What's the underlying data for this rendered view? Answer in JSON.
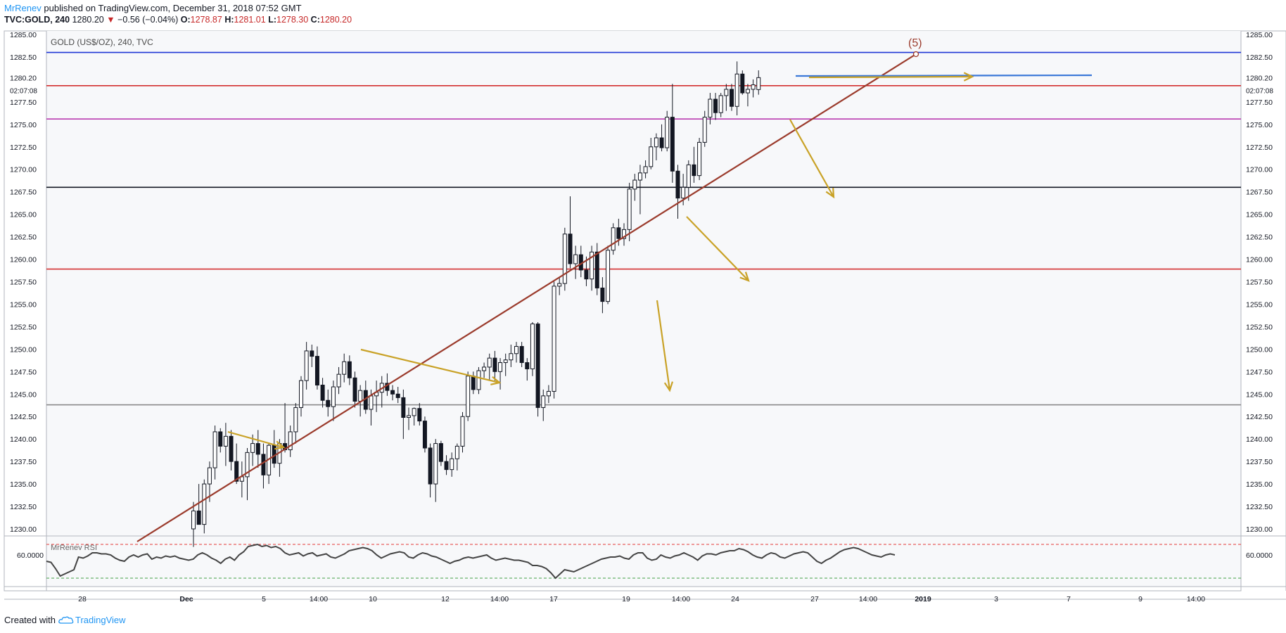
{
  "header": {
    "author": "MrRenev",
    "published": "published on TradingView.com, December 31, 2018 07:52 GMT",
    "symbol": "TVC:GOLD, 240",
    "last": "1280.20",
    "change_arrow": "▼",
    "change": "−0.56 (−0.04%)",
    "o_label": "O:",
    "o": "1278.87",
    "h_label": "H:",
    "h": "1281.01",
    "l_label": "L:",
    "l": "1278.30",
    "c_label": "C:",
    "c": "1280.20"
  },
  "footer": {
    "created_with": "Created with",
    "brand": "TradingView"
  },
  "chart_data": {
    "type": "candlestick",
    "title": "GOLD (US$/OZ), 240, TVC",
    "price_axis": {
      "ylim": [
        1228.5,
        1286.0
      ],
      "ticks": [
        "1285.00",
        "1282.50",
        "1280.20",
        "1277.50",
        "1275.00",
        "1272.50",
        "1270.00",
        "1267.50",
        "1265.00",
        "1262.50",
        "1260.00",
        "1257.50",
        "1255.00",
        "1252.50",
        "1250.00",
        "1247.50",
        "1245.00",
        "1242.50",
        "1240.00",
        "1237.50",
        "1235.00",
        "1232.50",
        "1230.00"
      ],
      "last_price": "1280.20",
      "countdown": "02:07:08"
    },
    "time_axis": {
      "ticks": [
        "28",
        "Dec",
        "5",
        "14:00",
        "10",
        "12",
        "14:00",
        "17",
        "19",
        "14:00",
        "24",
        "27",
        "14:00",
        "2019",
        "3",
        "7",
        "9",
        "14:00"
      ]
    },
    "horizontal_levels": [
      {
        "price": 1283.0,
        "color": "#1e36d6"
      },
      {
        "price": 1279.3,
        "color": "#d32f2f"
      },
      {
        "price": 1275.6,
        "color": "#ba3bb0"
      },
      {
        "price": 1268.0,
        "color": "#131722"
      },
      {
        "price": 1258.9,
        "color": "#d32f2f"
      },
      {
        "price": 1243.8,
        "color": "#8a8a8a"
      }
    ],
    "trendline": {
      "color": "#9b3b2c",
      "label": "(5)"
    },
    "arrows_color": "#c9a227",
    "candles": [
      [
        1230.0,
        1233.0,
        1228.0,
        1232.0
      ],
      [
        1232.0,
        1235.0,
        1230.5,
        1230.5
      ],
      [
        1230.5,
        1235.5,
        1229.5,
        1235.0
      ],
      [
        1235.0,
        1237.5,
        1233.0,
        1236.8
      ],
      [
        1236.8,
        1241.5,
        1235.5,
        1240.8
      ],
      [
        1240.8,
        1241.2,
        1238.5,
        1239.2
      ],
      [
        1239.2,
        1241.8,
        1237.0,
        1240.3
      ],
      [
        1240.3,
        1241.0,
        1236.5,
        1237.5
      ],
      [
        1237.5,
        1239.5,
        1235.0,
        1235.3
      ],
      [
        1235.3,
        1237.5,
        1233.5,
        1235.8
      ],
      [
        1235.8,
        1239.0,
        1233.2,
        1238.5
      ],
      [
        1238.5,
        1240.5,
        1237.0,
        1239.5
      ],
      [
        1239.5,
        1241.0,
        1236.8,
        1238.3
      ],
      [
        1238.3,
        1239.5,
        1234.5,
        1236.0
      ],
      [
        1236.0,
        1239.5,
        1235.0,
        1239.3
      ],
      [
        1239.3,
        1241.0,
        1236.8,
        1237.3
      ],
      [
        1237.3,
        1240.0,
        1235.8,
        1239.5
      ],
      [
        1239.5,
        1244.0,
        1238.5,
        1238.8
      ],
      [
        1238.8,
        1241.5,
        1238.0,
        1240.8
      ],
      [
        1240.8,
        1244.0,
        1239.5,
        1243.5
      ],
      [
        1243.5,
        1247.0,
        1242.5,
        1246.5
      ],
      [
        1246.5,
        1250.8,
        1245.5,
        1249.8
      ],
      [
        1249.8,
        1250.5,
        1248.0,
        1249.2
      ],
      [
        1249.2,
        1250.3,
        1245.5,
        1246.0
      ],
      [
        1246.0,
        1246.8,
        1243.5,
        1244.3
      ],
      [
        1244.3,
        1245.5,
        1242.5,
        1243.6
      ],
      [
        1243.6,
        1246.5,
        1242.0,
        1245.8
      ],
      [
        1245.8,
        1248.0,
        1245.0,
        1247.2
      ],
      [
        1247.2,
        1249.5,
        1246.3,
        1248.6
      ],
      [
        1248.6,
        1249.3,
        1246.0,
        1246.8
      ],
      [
        1246.8,
        1247.5,
        1243.5,
        1244.2
      ],
      [
        1244.2,
        1246.0,
        1242.5,
        1245.4
      ],
      [
        1245.4,
        1246.5,
        1242.8,
        1243.3
      ],
      [
        1243.3,
        1245.5,
        1241.5,
        1244.8
      ],
      [
        1244.8,
        1246.5,
        1243.0,
        1245.2
      ],
      [
        1245.2,
        1247.0,
        1243.5,
        1246.2
      ],
      [
        1246.2,
        1247.3,
        1244.8,
        1245.4
      ],
      [
        1245.4,
        1246.0,
        1244.3,
        1245.0
      ],
      [
        1245.0,
        1245.8,
        1244.0,
        1244.6
      ],
      [
        1244.6,
        1245.5,
        1240.0,
        1242.4
      ],
      [
        1242.4,
        1243.5,
        1241.0,
        1242.6
      ],
      [
        1242.6,
        1243.5,
        1241.5,
        1243.4
      ],
      [
        1243.4,
        1244.0,
        1241.5,
        1242.0
      ],
      [
        1242.0,
        1242.5,
        1238.5,
        1239.0
      ],
      [
        1239.0,
        1239.5,
        1233.5,
        1235.0
      ],
      [
        1235.0,
        1240.0,
        1233.0,
        1239.5
      ],
      [
        1239.5,
        1239.8,
        1237.0,
        1237.5
      ],
      [
        1237.5,
        1238.2,
        1236.0,
        1236.6
      ],
      [
        1236.6,
        1238.5,
        1235.8,
        1237.8
      ],
      [
        1237.8,
        1239.5,
        1236.5,
        1239.2
      ],
      [
        1239.2,
        1243.0,
        1238.5,
        1242.5
      ],
      [
        1242.5,
        1247.5,
        1242.0,
        1247.0
      ],
      [
        1247.0,
        1247.5,
        1245.0,
        1245.5
      ],
      [
        1245.5,
        1248.0,
        1245.0,
        1247.6
      ],
      [
        1247.6,
        1248.5,
        1246.8,
        1248.0
      ],
      [
        1248.0,
        1249.5,
        1246.5,
        1249.0
      ],
      [
        1249.0,
        1249.8,
        1246.5,
        1247.5
      ],
      [
        1247.5,
        1249.0,
        1245.5,
        1248.5
      ],
      [
        1248.5,
        1249.5,
        1247.0,
        1248.8
      ],
      [
        1248.8,
        1250.5,
        1248.0,
        1249.5
      ],
      [
        1249.5,
        1250.8,
        1248.5,
        1250.3
      ],
      [
        1250.3,
        1250.8,
        1248.0,
        1248.5
      ],
      [
        1248.5,
        1249.0,
        1246.5,
        1247.8
      ],
      [
        1247.8,
        1253.0,
        1247.0,
        1252.8
      ],
      [
        1252.8,
        1253.0,
        1242.5,
        1243.5
      ],
      [
        1243.5,
        1245.5,
        1242.0,
        1244.8
      ],
      [
        1244.8,
        1246.0,
        1244.0,
        1245.3
      ],
      [
        1245.3,
        1257.5,
        1244.5,
        1257.0
      ],
      [
        1257.0,
        1258.0,
        1256.0,
        1257.3
      ],
      [
        1257.3,
        1263.5,
        1256.5,
        1262.8
      ],
      [
        1262.8,
        1267.0,
        1259.0,
        1259.5
      ],
      [
        1259.5,
        1261.5,
        1257.8,
        1260.5
      ],
      [
        1260.5,
        1261.5,
        1258.0,
        1258.8
      ],
      [
        1258.8,
        1260.3,
        1257.0,
        1257.8
      ],
      [
        1257.8,
        1261.5,
        1256.5,
        1260.8
      ],
      [
        1260.8,
        1261.8,
        1256.0,
        1256.8
      ],
      [
        1256.8,
        1258.0,
        1254.0,
        1255.3
      ],
      [
        1255.3,
        1261.5,
        1255.0,
        1261.0
      ],
      [
        1261.0,
        1264.0,
        1260.5,
        1263.5
      ],
      [
        1263.5,
        1264.5,
        1261.5,
        1262.3
      ],
      [
        1262.3,
        1264.0,
        1261.5,
        1263.3
      ],
      [
        1263.3,
        1268.5,
        1262.0,
        1267.8
      ],
      [
        1267.8,
        1269.5,
        1266.5,
        1268.8
      ],
      [
        1268.8,
        1270.5,
        1265.0,
        1269.6
      ],
      [
        1269.6,
        1271.0,
        1269.0,
        1270.3
      ],
      [
        1270.3,
        1273.5,
        1270.0,
        1272.5
      ],
      [
        1272.5,
        1274.0,
        1271.0,
        1273.5
      ],
      [
        1273.5,
        1275.0,
        1272.0,
        1272.4
      ],
      [
        1272.4,
        1276.5,
        1272.0,
        1275.8
      ],
      [
        1275.8,
        1279.5,
        1268.5,
        1269.8
      ],
      [
        1269.8,
        1270.5,
        1264.5,
        1266.8
      ],
      [
        1266.8,
        1269.5,
        1266.0,
        1268.0
      ],
      [
        1268.0,
        1271.0,
        1266.5,
        1270.5
      ],
      [
        1270.5,
        1272.5,
        1268.5,
        1269.3
      ],
      [
        1269.3,
        1273.5,
        1268.8,
        1273.0
      ],
      [
        1273.0,
        1276.5,
        1272.5,
        1275.8
      ],
      [
        1275.8,
        1278.5,
        1275.0,
        1277.8
      ],
      [
        1277.8,
        1278.5,
        1275.5,
        1276.3
      ],
      [
        1276.3,
        1278.5,
        1275.8,
        1278.2
      ],
      [
        1278.2,
        1279.5,
        1276.5,
        1278.9
      ],
      [
        1278.9,
        1279.5,
        1276.5,
        1277.0
      ],
      [
        1277.0,
        1282.0,
        1276.0,
        1280.6
      ],
      [
        1280.6,
        1281.0,
        1278.3,
        1278.5
      ],
      [
        1278.5,
        1279.5,
        1277.0,
        1278.9
      ],
      [
        1278.9,
        1280.0,
        1278.0,
        1279.4
      ],
      [
        1278.87,
        1281.01,
        1278.3,
        1280.2
      ]
    ],
    "indicator": {
      "name": "MrRenev RSI",
      "ytick": "60.0000",
      "values": [
        54,
        53,
        47,
        40,
        42,
        44,
        46,
        58,
        57,
        59,
        62,
        62,
        61,
        61,
        60,
        57,
        55,
        54,
        58,
        60,
        58,
        60,
        61,
        56,
        58,
        57,
        59,
        58,
        59,
        57,
        56,
        55,
        56,
        60,
        62,
        60,
        57,
        55,
        52,
        56,
        58,
        55,
        60,
        63,
        68,
        69,
        70,
        68,
        69,
        67,
        68,
        66,
        62,
        60,
        61,
        62,
        59,
        61,
        62,
        59,
        60,
        61,
        58,
        57,
        59,
        61,
        64,
        65,
        66,
        67,
        66,
        64,
        60,
        57,
        59,
        61,
        62,
        63,
        62,
        58,
        57,
        60,
        62,
        61,
        59,
        58,
        56,
        54,
        52,
        54,
        55,
        57,
        58,
        57,
        58,
        59,
        60,
        57,
        55,
        56,
        57,
        56,
        55,
        55,
        54,
        53,
        50,
        50,
        49,
        47,
        43,
        38,
        42,
        46,
        45,
        44,
        46,
        48,
        50,
        52,
        54,
        56,
        57,
        58,
        58,
        59,
        57,
        56,
        60,
        62,
        62,
        57,
        55,
        56,
        60,
        58,
        57,
        59,
        60,
        62,
        60,
        58,
        55,
        59,
        61,
        61,
        60,
        62,
        63,
        64,
        64,
        66,
        65,
        63,
        60,
        58,
        57,
        60,
        62,
        61,
        58,
        57,
        59,
        61,
        62,
        63,
        62,
        58,
        54,
        52,
        55,
        57,
        60,
        63,
        65,
        66,
        67,
        66,
        64,
        62,
        60,
        59,
        58,
        60,
        61,
        60
      ]
    }
  }
}
